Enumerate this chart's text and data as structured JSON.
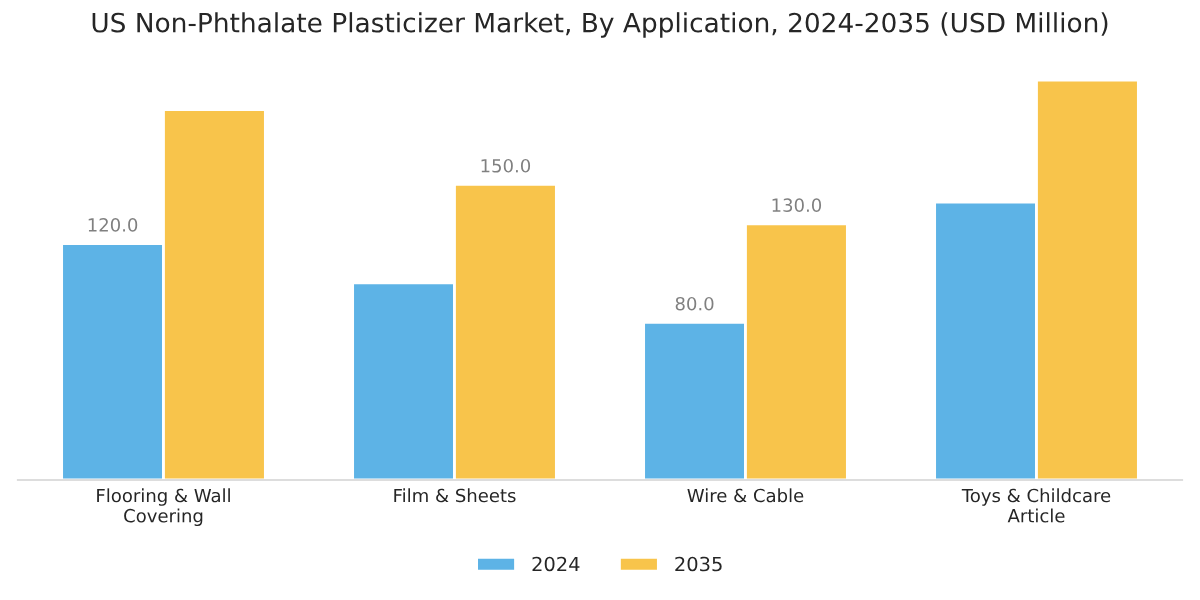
{
  "chart_data": {
    "type": "bar",
    "title": "US Non-Phthalate Plasticizer Market, By Application, 2024-2035 (USD Million)",
    "categories": [
      "Flooring & Wall\nCovering",
      "Film & Sheets",
      "Wire & Cable",
      "Toys & Childcare\nArticle"
    ],
    "series": [
      {
        "name": "2024",
        "color": "#5db3e6",
        "values": [
          120,
          100,
          80,
          141
        ],
        "value_labels": [
          "120.0",
          null,
          "80.0",
          null
        ]
      },
      {
        "name": "2035",
        "color": "#f8c44b",
        "values": [
          188,
          150,
          130,
          203
        ],
        "value_labels": [
          null,
          "150.0",
          "130.0",
          null
        ]
      }
    ],
    "legend": "bottom",
    "grid": false
  }
}
